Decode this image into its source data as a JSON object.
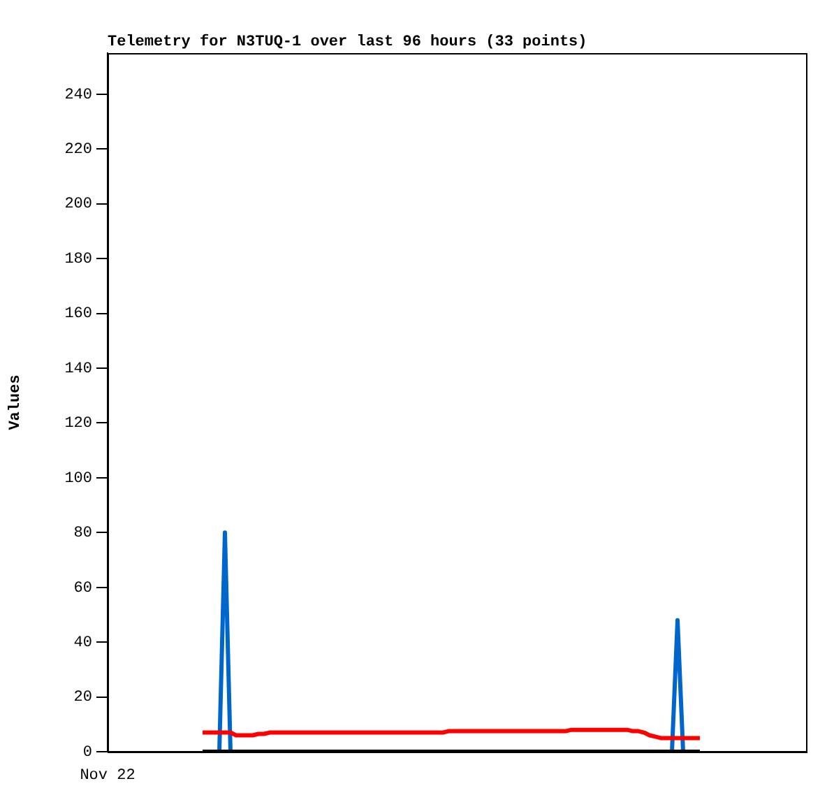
{
  "chart_data": {
    "type": "line",
    "title": "Telemetry for N3TUQ-1 over last 96 hours (33 points)",
    "ylabel": "Values",
    "categories": [
      "Nov 22",
      null,
      null,
      null,
      null,
      null,
      null,
      null,
      null,
      null,
      null,
      null,
      null,
      null,
      null,
      null,
      null,
      null,
      null,
      null,
      null,
      null,
      null,
      null,
      null,
      null,
      null,
      null,
      null,
      null,
      null,
      null,
      null,
      null,
      null,
      null,
      null,
      null,
      null,
      null,
      null,
      null,
      null,
      null,
      null,
      null,
      null,
      null,
      null,
      null,
      null,
      null,
      null,
      null,
      null,
      null,
      null,
      null,
      null,
      null,
      null,
      null,
      null,
      null,
      null,
      null,
      null,
      null,
      null,
      null,
      null,
      null,
      null,
      null,
      null,
      null,
      null,
      null,
      null,
      null,
      null,
      null,
      null,
      null,
      null,
      null,
      null,
      null,
      null,
      null,
      null,
      null,
      null,
      null,
      null,
      null,
      null,
      null,
      null,
      null,
      null,
      null,
      null,
      null,
      null,
      null,
      null,
      null,
      null,
      null,
      null,
      null,
      null,
      null,
      null,
      null,
      null,
      null,
      null,
      null,
      null,
      null,
      null,
      null,
      null,
      null
    ],
    "ylim": [
      0,
      255
    ],
    "yticks": [
      0,
      20,
      40,
      60,
      80,
      100,
      120,
      140,
      160,
      180,
      200,
      220,
      240
    ],
    "grid": false,
    "legend": false,
    "marker": "none",
    "line_style": "solid",
    "series": [
      {
        "color": "#000000",
        "values": [
          null,
          null,
          null,
          null,
          null,
          null,
          null,
          null,
          null,
          null,
          null,
          null,
          null,
          null,
          null,
          null,
          null,
          0,
          0,
          0,
          0,
          0,
          0,
          0,
          0,
          0,
          0,
          0,
          0,
          0,
          0,
          0,
          0,
          0,
          0,
          0,
          0,
          0,
          0,
          0,
          0,
          0,
          0,
          0,
          0,
          0,
          0,
          0,
          0,
          0,
          0,
          0,
          0,
          0,
          0,
          0,
          0,
          0,
          0,
          0,
          0,
          0,
          0,
          0,
          0,
          0,
          0,
          0,
          0,
          0,
          0,
          0,
          0,
          0,
          0,
          0,
          0,
          0,
          0,
          0,
          0,
          0,
          0,
          0,
          0,
          0,
          0,
          0,
          0,
          0,
          0,
          0,
          0,
          0,
          0,
          0,
          0,
          0,
          0,
          0,
          0,
          0,
          0,
          0,
          0,
          0,
          0,
          null,
          null,
          null,
          null,
          null,
          null,
          null,
          null,
          null,
          null,
          null,
          null,
          null,
          null,
          null,
          null,
          null,
          null,
          null
        ]
      },
      {
        "color": "#ff0000",
        "values": [
          null,
          null,
          null,
          null,
          null,
          null,
          null,
          null,
          null,
          null,
          null,
          null,
          null,
          null,
          null,
          null,
          null,
          7,
          7,
          7,
          7,
          7,
          7,
          6,
          6,
          6,
          6,
          6.5,
          6.5,
          7,
          7,
          7,
          7,
          7,
          7,
          7,
          7,
          7,
          7,
          7,
          7,
          7,
          7,
          7,
          7,
          7,
          7,
          7,
          7,
          7,
          7,
          7,
          7,
          7,
          7,
          7,
          7,
          7,
          7,
          7,
          7,
          7.5,
          7.5,
          7.5,
          7.5,
          7.5,
          7.5,
          7.5,
          7.5,
          7.5,
          7.5,
          7.5,
          7.5,
          7.5,
          7.5,
          7.5,
          7.5,
          7.5,
          7.5,
          7.5,
          7.5,
          7.5,
          7.5,
          8,
          8,
          8,
          8,
          8,
          8,
          8,
          8,
          8,
          8,
          8,
          7.5,
          7.5,
          7,
          6,
          5.5,
          5,
          5,
          5,
          5,
          5,
          5,
          5,
          5,
          null,
          null,
          null,
          null,
          null,
          null,
          null,
          null,
          null,
          null,
          null,
          null,
          null,
          null,
          null,
          null,
          null,
          null,
          null
        ]
      },
      {
        "color": "#0066cc",
        "values": [
          null,
          null,
          null,
          null,
          null,
          null,
          null,
          null,
          null,
          null,
          null,
          null,
          null,
          null,
          null,
          null,
          null,
          null,
          null,
          null,
          0,
          80,
          0,
          null,
          null,
          null,
          null,
          null,
          null,
          null,
          null,
          null,
          null,
          null,
          null,
          null,
          null,
          null,
          null,
          null,
          null,
          null,
          null,
          null,
          null,
          null,
          null,
          null,
          null,
          null,
          null,
          null,
          null,
          null,
          null,
          null,
          null,
          null,
          null,
          null,
          null,
          null,
          null,
          null,
          null,
          null,
          null,
          null,
          null,
          null,
          null,
          null,
          null,
          null,
          null,
          null,
          null,
          null,
          null,
          null,
          null,
          null,
          null,
          null,
          null,
          null,
          null,
          null,
          null,
          null,
          null,
          null,
          null,
          null,
          null,
          null,
          null,
          null,
          null,
          null,
          null,
          0,
          48,
          0,
          null,
          null,
          null,
          null,
          null,
          null,
          null,
          null,
          null,
          null,
          null,
          null,
          null,
          null,
          null,
          null,
          null,
          null,
          null,
          null,
          null,
          null
        ]
      }
    ]
  }
}
